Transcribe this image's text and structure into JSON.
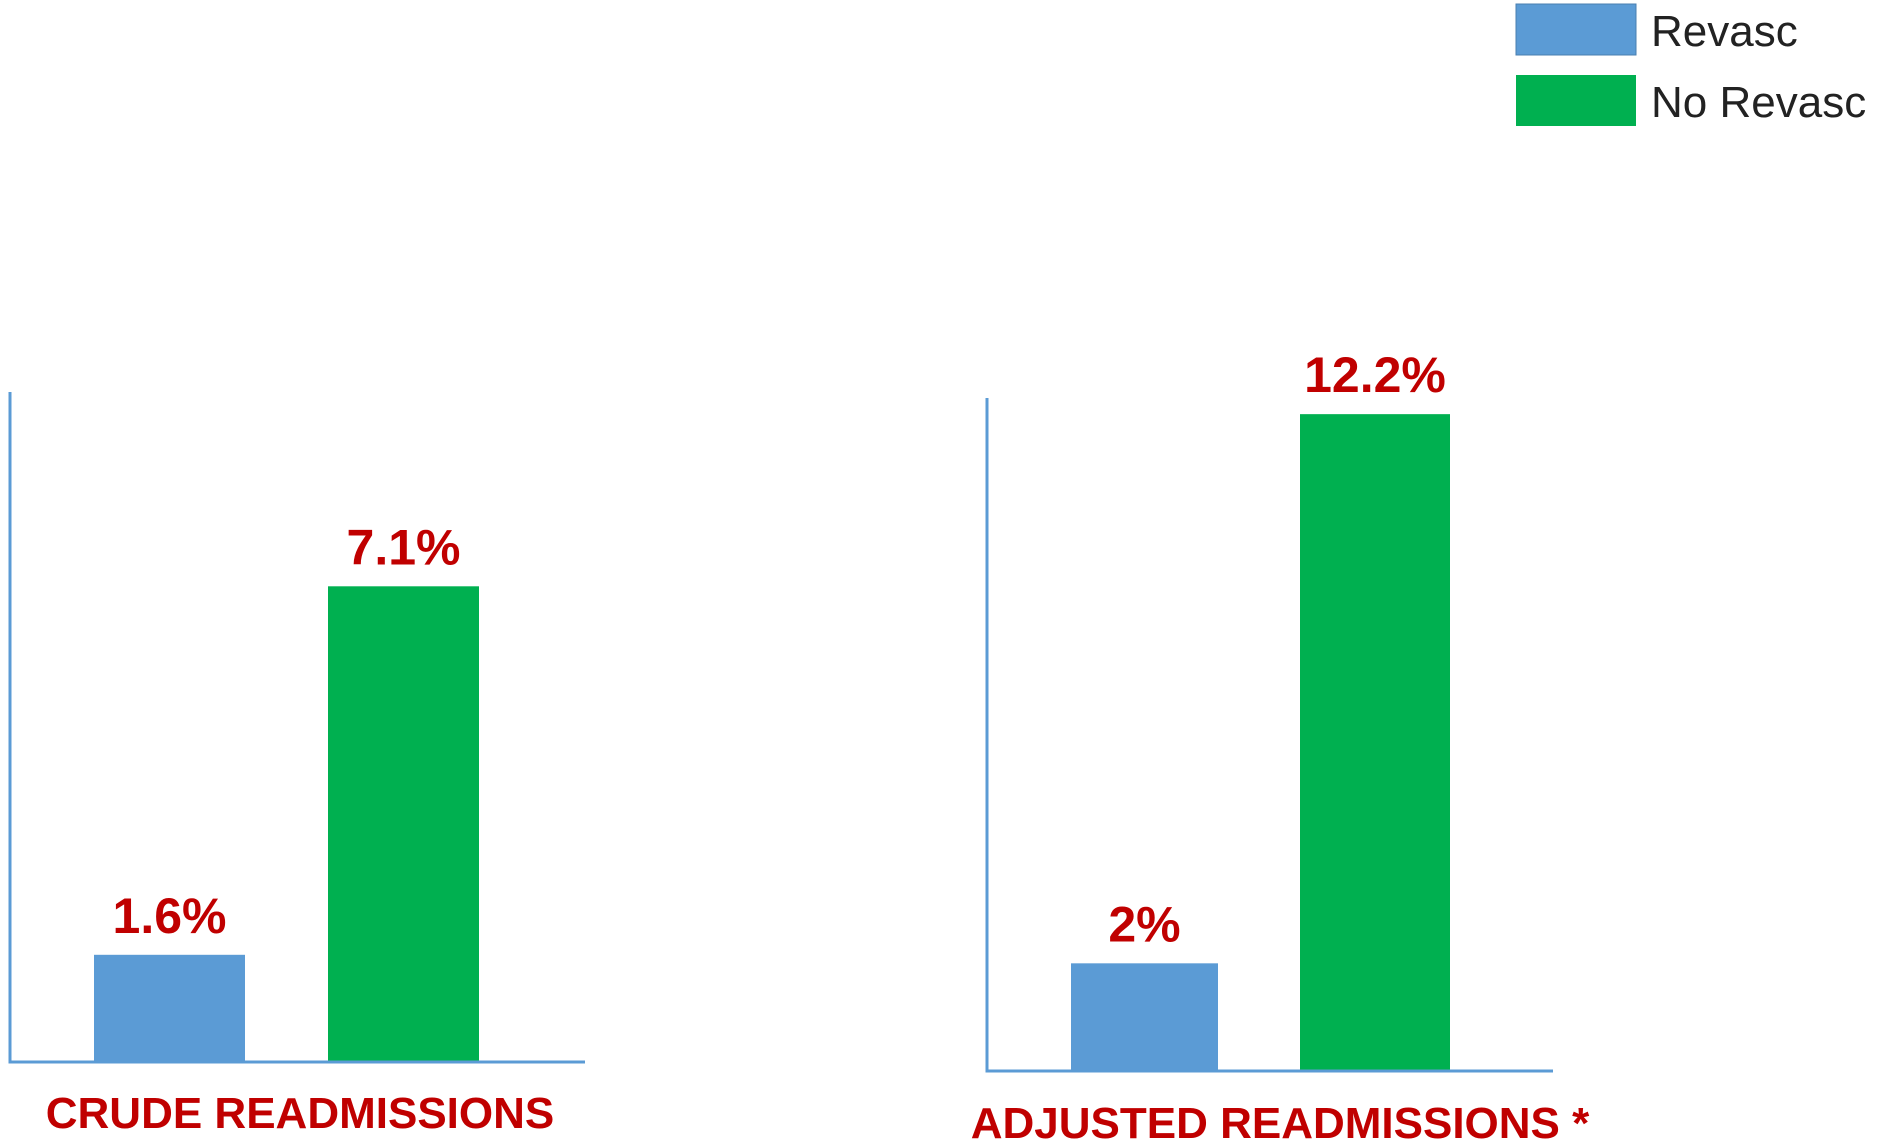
{
  "chart_data": [
    {
      "type": "bar",
      "x_label": "CRUDE READMISSIONS",
      "ylim": [
        0,
        10
      ],
      "series": [
        {
          "name": "Revasc",
          "color": "#5b9bd5",
          "values": [
            1.6
          ],
          "value_labels": [
            "1.6%"
          ]
        },
        {
          "name": "No Revasc",
          "color": "#00b050",
          "values": [
            7.1
          ],
          "value_labels": [
            "7.1%"
          ]
        }
      ]
    },
    {
      "type": "bar",
      "x_label": "ADJUSTED READMISSIONS *",
      "ylim": [
        0,
        12.5
      ],
      "series": [
        {
          "color": "#5b9bd5",
          "values": [
            2
          ],
          "value_labels": [
            "2%"
          ]
        },
        {
          "color": "#00b050",
          "values": [
            12.2
          ],
          "value_labels": [
            "12.2%"
          ]
        }
      ]
    }
  ]
}
